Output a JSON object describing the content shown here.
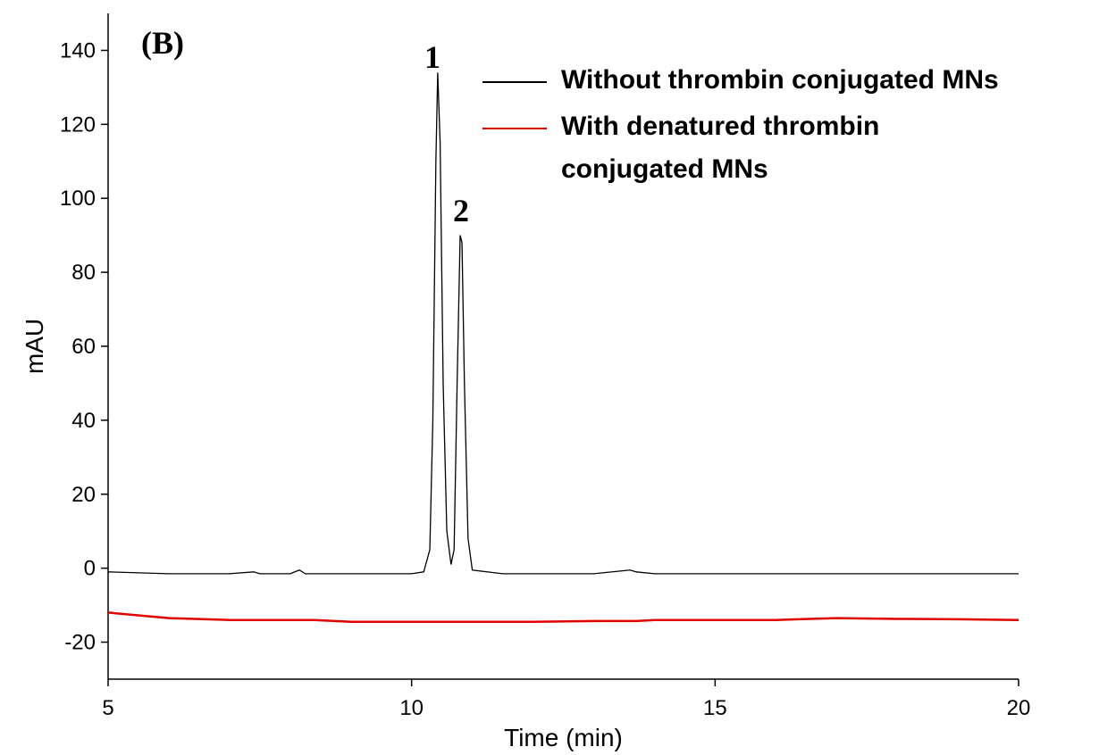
{
  "chart_data": {
    "type": "line",
    "xlabel": "Time (min)",
    "ylabel": "mAU",
    "annotations": [
      "(B)",
      "1",
      "2"
    ],
    "x": [
      5,
      6,
      7,
      7.4,
      7.5,
      7.6,
      8,
      8.15,
      8.25,
      8.4,
      9,
      9.5,
      10,
      10.2,
      10.3,
      10.35,
      10.4,
      10.43,
      10.47,
      10.52,
      10.58,
      10.65,
      10.7,
      10.75,
      10.8,
      10.83,
      10.87,
      10.93,
      11,
      11.5,
      12,
      13,
      13.6,
      13.7,
      14,
      15,
      16,
      17,
      18,
      19,
      20
    ],
    "series": [
      {
        "name": "Without thrombin conjugated MNs",
        "color": "#000000",
        "values": [
          -1,
          -1.5,
          -1.5,
          -1,
          -1.5,
          -1.5,
          -1.5,
          -0.5,
          -1.5,
          -1.5,
          -1.5,
          -1.5,
          -1.5,
          -1,
          5,
          40,
          110,
          134,
          115,
          50,
          10,
          1,
          5,
          50,
          90,
          88,
          50,
          8,
          -0.5,
          -1.5,
          -1.5,
          -1.5,
          -0.5,
          -1,
          -1.5,
          -1.5,
          -1.5,
          -1.5,
          -1.5,
          -1.5,
          -1.5
        ]
      },
      {
        "name": "With denatured thrombin conjugated MNs",
        "color": "#e00000",
        "values": [
          -12,
          -13.5,
          -14,
          -14,
          -14,
          -14,
          -14,
          -14,
          -14,
          -14,
          -14.5,
          -14.5,
          -14.5,
          -14.5,
          -14.5,
          -14.5,
          -14.5,
          -14.5,
          -14.5,
          -14.5,
          -14.5,
          -14.5,
          -14.5,
          -14.5,
          -14.5,
          -14.5,
          -14.5,
          -14.5,
          -14.5,
          -14.5,
          -14.5,
          -14.3,
          -14.3,
          -14.3,
          -14,
          -14,
          -14,
          -13.5,
          -13.7,
          -13.8,
          -14
        ]
      }
    ],
    "xlim": [
      5,
      20
    ],
    "xticks": [
      5,
      10,
      15,
      20
    ],
    "ylim": [
      -30,
      150
    ],
    "yticks": [
      -20,
      0,
      20,
      40,
      60,
      80,
      100,
      120,
      140
    ]
  }
}
